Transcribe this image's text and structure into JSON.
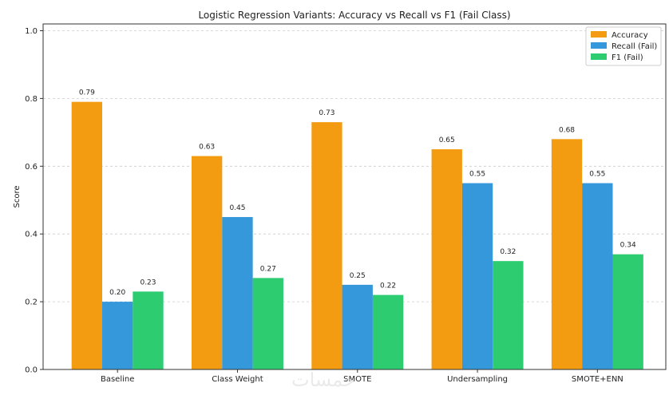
{
  "chart_data": {
    "type": "bar",
    "title": "Logistic Regression Variants: Accuracy vs Recall vs F1 (Fail Class)",
    "xlabel": "",
    "ylabel": "Score",
    "ylim": [
      0,
      1.02
    ],
    "yticks": [
      0.0,
      0.2,
      0.4,
      0.6,
      0.8,
      1.0
    ],
    "ytick_labels": [
      "0.0",
      "0.2",
      "0.4",
      "0.6",
      "0.8",
      "1.0"
    ],
    "grid": true,
    "legend_position": "top-right",
    "categories": [
      "Baseline",
      "Class Weight",
      "SMOTE",
      "Undersampling",
      "SMOTE+ENN"
    ],
    "series": [
      {
        "name": "Accuracy",
        "color": "#f39c12",
        "values": [
          0.79,
          0.63,
          0.73,
          0.65,
          0.68
        ],
        "labels": [
          "0.79",
          "0.63",
          "0.73",
          "0.65",
          "0.68"
        ]
      },
      {
        "name": "Recall (Fail)",
        "color": "#3498db",
        "values": [
          0.2,
          0.45,
          0.25,
          0.55,
          0.55
        ],
        "labels": [
          "0.20",
          "0.45",
          "0.25",
          "0.55",
          "0.55"
        ]
      },
      {
        "name": "F1 (Fail)",
        "color": "#2ecc71",
        "values": [
          0.23,
          0.27,
          0.22,
          0.32,
          0.34
        ],
        "labels": [
          "0.23",
          "0.27",
          "0.22",
          "0.32",
          "0.34"
        ]
      }
    ]
  }
}
